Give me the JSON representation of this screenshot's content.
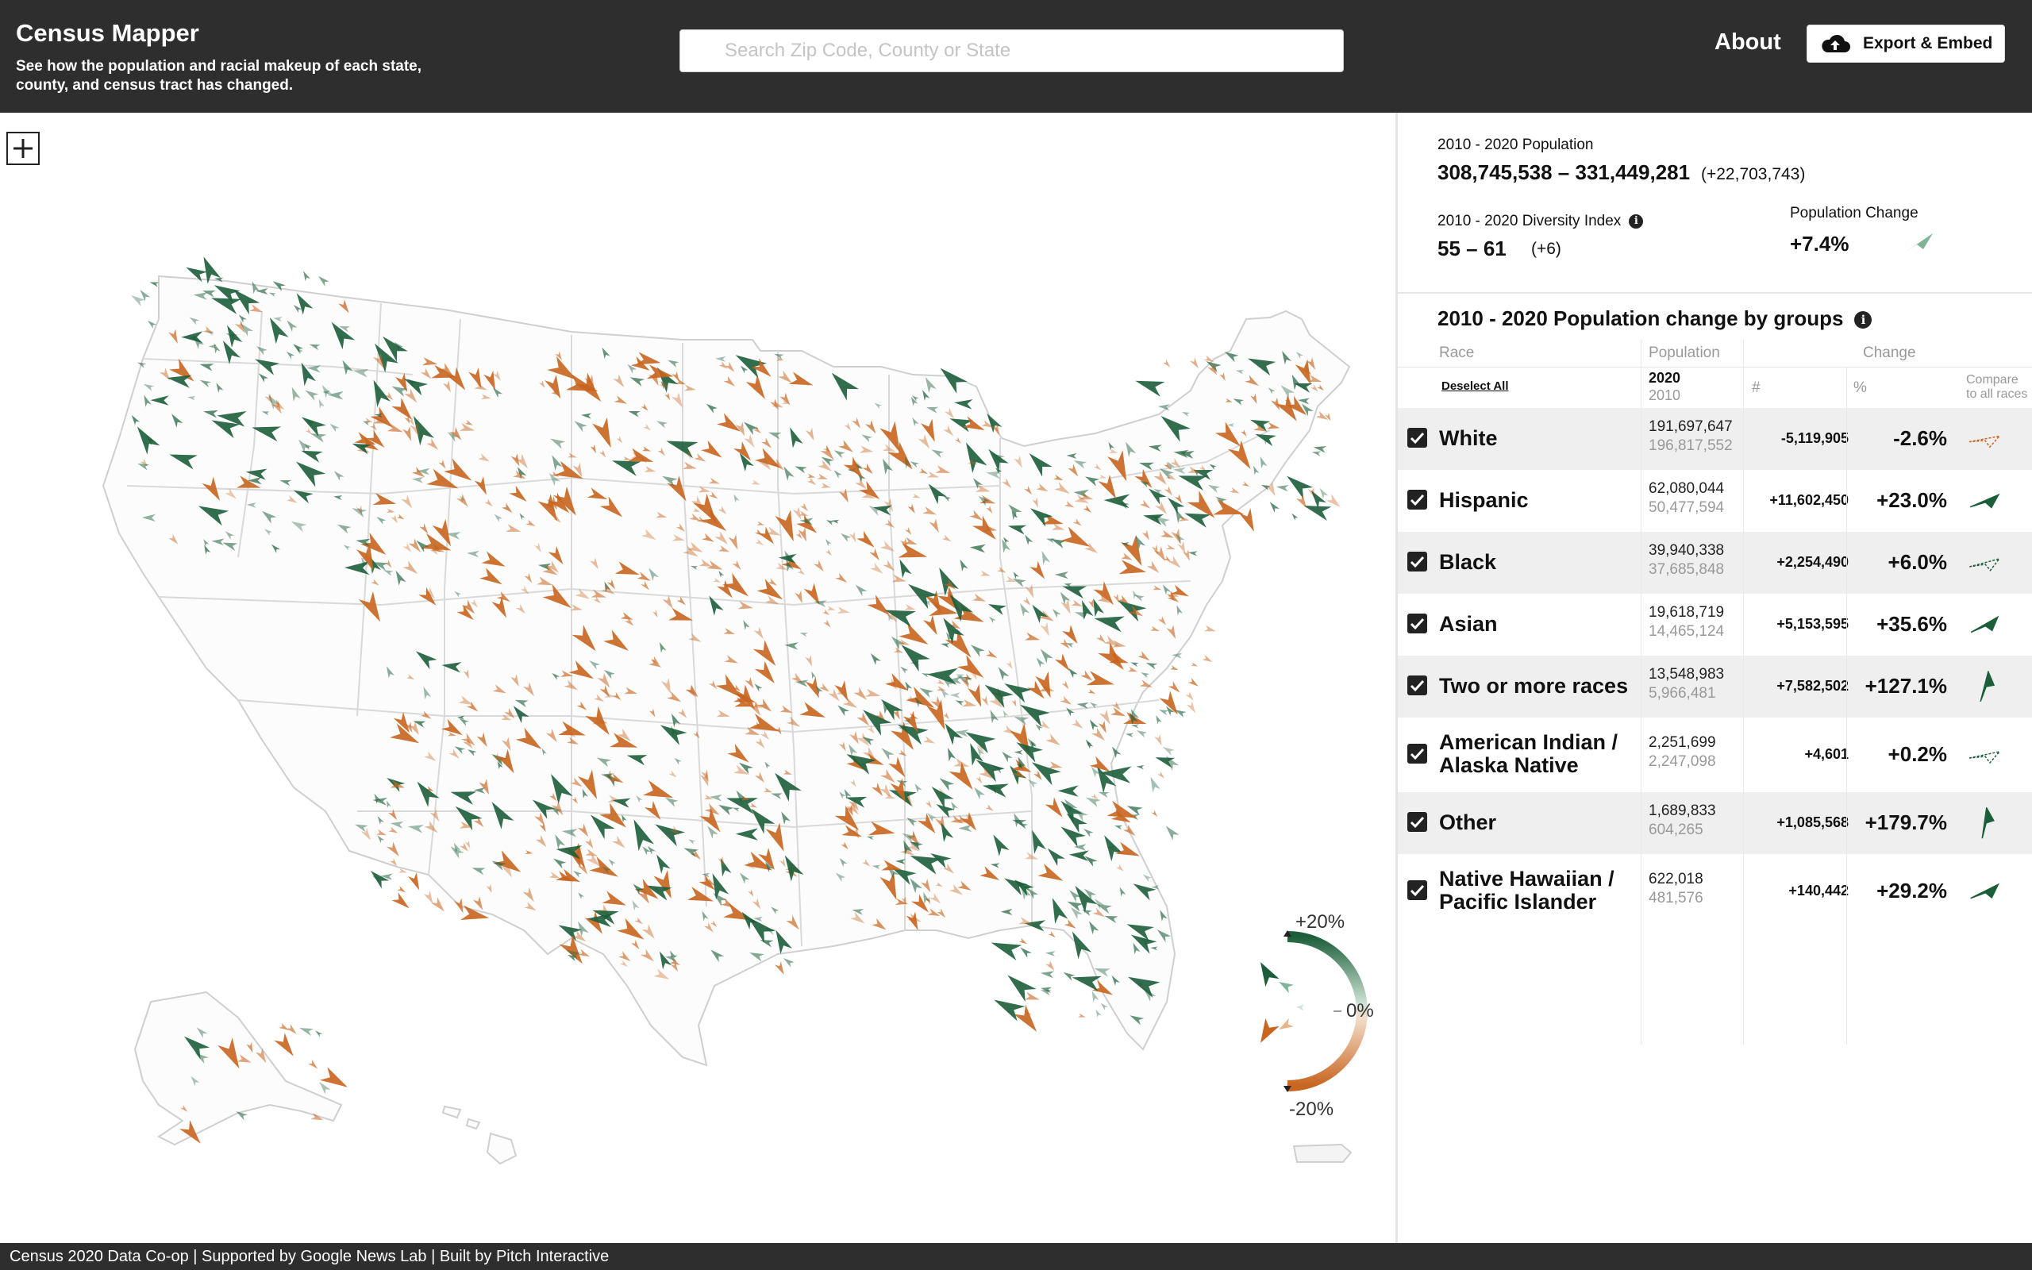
{
  "header": {
    "title": "Census Mapper",
    "subtitle": "See how the population and racial makeup of each state, county, and census tract has changed.",
    "search_placeholder": "Search Zip Code, County or State",
    "about_label": "About",
    "export_label": "Export & Embed"
  },
  "map": {
    "legend": {
      "top_label": "+20%",
      "mid_label": "0%",
      "bottom_label": "-20%"
    },
    "colors": {
      "increase": "#1c5e3a",
      "decrease": "#c8651f",
      "state_border": "#d4d4d4",
      "county_border": "#ececec"
    }
  },
  "summary": {
    "population_label": "2010 - 2020 Population",
    "population_range": "308,745,538 – 331,449,281",
    "population_delta": "(+22,703,743)",
    "diversity_label": "2010 - 2020 Diversity Index",
    "diversity_range": "55 – 61",
    "diversity_delta": "(+6)",
    "pop_change_label": "Population Change",
    "pop_change_value": "+7.4%"
  },
  "groups": {
    "title": "2010 - 2020 Population change by groups",
    "col_race": "Race",
    "col_population": "Population",
    "col_change": "Change",
    "year_2020": "2020",
    "year_2010": "2010",
    "col_num": "#",
    "col_pct": "%",
    "compare_line1": "Compare",
    "compare_line2": "to all races",
    "deselect_all": "Deselect All",
    "rows": [
      {
        "name": "White",
        "pop2020": "191,697,647",
        "pop2010": "196,817,552",
        "change": "-5,119,905",
        "pct": "-2.6%",
        "pct_value": -2.6
      },
      {
        "name": "Hispanic",
        "pop2020": "62,080,044",
        "pop2010": "50,477,594",
        "change": "+11,602,450",
        "pct": "+23.0%",
        "pct_value": 23.0
      },
      {
        "name": "Black",
        "pop2020": "39,940,338",
        "pop2010": "37,685,848",
        "change": "+2,254,490",
        "pct": "+6.0%",
        "pct_value": 6.0
      },
      {
        "name": "Asian",
        "pop2020": "19,618,719",
        "pop2010": "14,465,124",
        "change": "+5,153,595",
        "pct": "+35.6%",
        "pct_value": 35.6
      },
      {
        "name": "Two or more races",
        "pop2020": "13,548,983",
        "pop2010": "5,966,481",
        "change": "+7,582,502",
        "pct": "+127.1%",
        "pct_value": 127.1
      },
      {
        "name_line1": "American Indian /",
        "name_line2": "Alaska Native",
        "pop2020": "2,251,699",
        "pop2010": "2,247,098",
        "change": "+4,601",
        "pct": "+0.2%",
        "pct_value": 0.2
      },
      {
        "name": "Other",
        "pop2020": "1,689,833",
        "pop2010": "604,265",
        "change": "+1,085,568",
        "pct": "+179.7%",
        "pct_value": 179.7
      },
      {
        "name_line1": "Native Hawaiian /",
        "name_line2": "Pacific Islander",
        "pop2020": "622,018",
        "pop2010": "481,576",
        "change": "+140,442",
        "pct": "+29.2%",
        "pct_value": 29.2
      }
    ]
  },
  "footer": {
    "text": "Census 2020 Data Co-op | Supported by Google News Lab | Built by Pitch Interactive"
  }
}
